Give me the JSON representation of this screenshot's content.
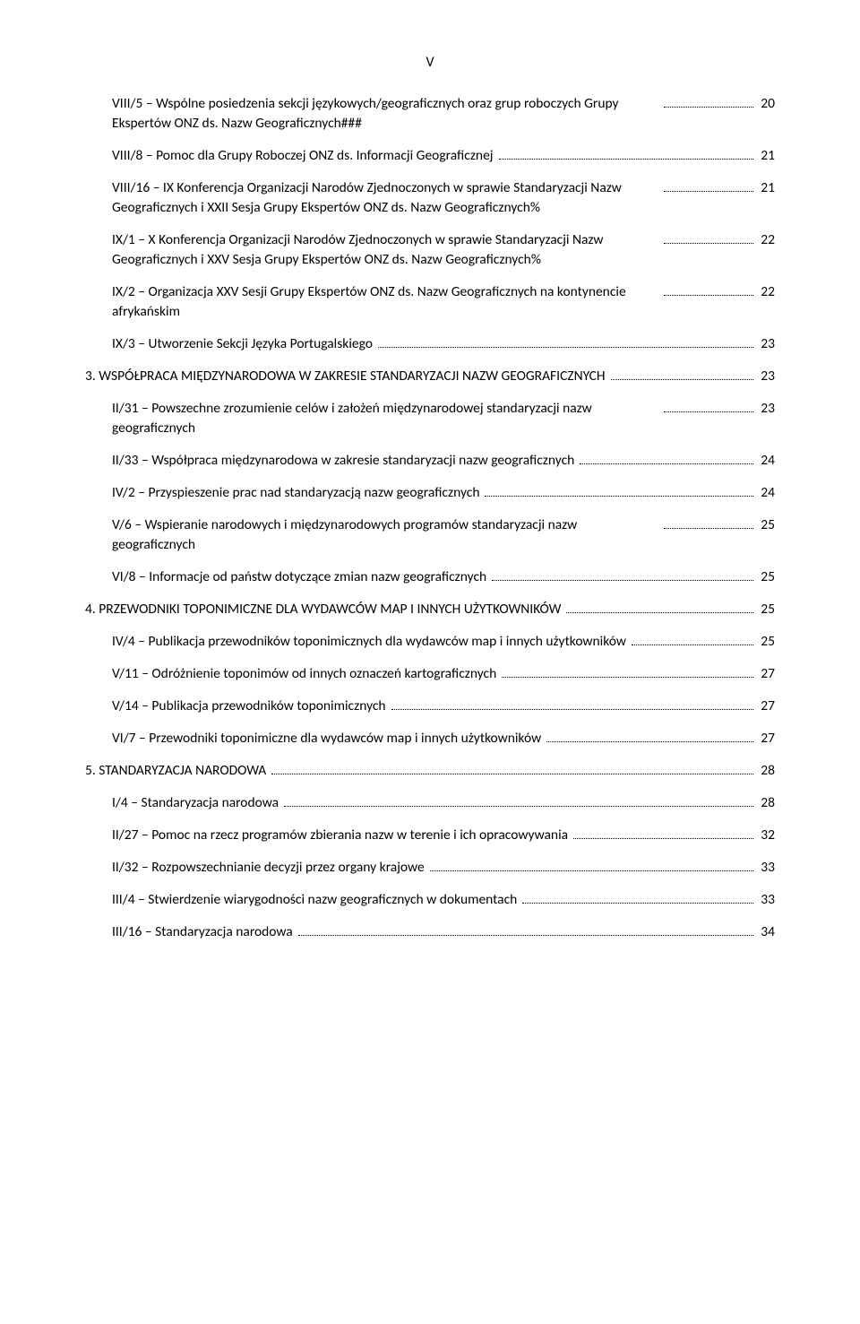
{
  "page_number_label": "V",
  "entries": [
    {
      "level": 1,
      "text": "VIII/5 – Wspólne posiedzenia sekcji językowych/geograficznych oraz grup roboczych Grupy Ekspertów ONZ ds. Nazw Geograficznych###",
      "page": "20",
      "multi": true
    },
    {
      "level": 1,
      "text": "VIII/8 – Pomoc dla Grupy Roboczej ONZ ds. Informacji Geograficznej",
      "page": "21"
    },
    {
      "level": 1,
      "text": "VIII/16 – IX Konferencja Organizacji Narodów Zjednoczonych w sprawie Standaryzacji Nazw Geograficznych i XXII Sesja Grupy Ekspertów ONZ ds. Nazw Geograficznych%",
      "page": "21",
      "multi": true
    },
    {
      "level": 1,
      "text": "IX/1 – X Konferencja Organizacji Narodów Zjednoczonych w sprawie Standaryzacji Nazw Geograficznych i XXV Sesja Grupy Ekspertów ONZ ds. Nazw Geograficznych%",
      "page": "22",
      "multi": true
    },
    {
      "level": 1,
      "text": "IX/2 – Organizacja XXV Sesji Grupy Ekspertów ONZ ds. Nazw Geograficznych na kontynencie afrykańskim",
      "page": "22",
      "multi": true
    },
    {
      "level": 1,
      "text": "IX/3 – Utworzenie Sekcji Języka Portugalskiego",
      "page": "23"
    },
    {
      "level": 0,
      "text": "3. WSPÓŁPRACA MIĘDZYNARODOWA W ZAKRESIE STANDARYZACJI NAZW GEOGRAFICZNYCH",
      "page": "23"
    },
    {
      "level": 1,
      "text": "II/31 – Powszechne zrozumienie celów i założeń międzynarodowej standaryzacji nazw geograficznych",
      "page": "23",
      "multi": true
    },
    {
      "level": 1,
      "text": "II/33 – Współpraca międzynarodowa w zakresie standaryzacji nazw geograficznych",
      "page": "24"
    },
    {
      "level": 1,
      "text": "IV/2 – Przyspieszenie prac nad standaryzacją nazw geograficznych",
      "page": "24"
    },
    {
      "level": 1,
      "text": "V/6 – Wspieranie narodowych i międzynarodowych programów standaryzacji nazw geograficznych",
      "page": "25",
      "multi": true
    },
    {
      "level": 1,
      "text": "VI/8 – Informacje od państw dotyczące zmian nazw geograficznych",
      "page": "25"
    },
    {
      "level": 0,
      "text": "4. PRZEWODNIKI TOPONIMICZNE DLA WYDAWCÓW MAP I INNYCH UŻYTKOWNIKÓW",
      "page": "25"
    },
    {
      "level": 1,
      "text": "IV/4 – Publikacja przewodników toponimicznych dla wydawców map i innych użytkowników",
      "page": "25"
    },
    {
      "level": 1,
      "text": "V/11 – Odróżnienie toponimów od innych oznaczeń kartograficznych",
      "page": "27"
    },
    {
      "level": 1,
      "text": "V/14 – Publikacja przewodników toponimicznych",
      "page": "27"
    },
    {
      "level": 1,
      "text": "VI/7 – Przewodniki toponimiczne dla wydawców map i innych użytkowników",
      "page": "27"
    },
    {
      "level": 0,
      "text": "5. STANDARYZACJA NARODOWA",
      "page": "28"
    },
    {
      "level": 1,
      "text": "I/4 – Standaryzacja narodowa",
      "page": "28"
    },
    {
      "level": 1,
      "text": "II/27 – Pomoc na rzecz programów zbierania nazw w terenie i ich opracowywania",
      "page": "32"
    },
    {
      "level": 1,
      "text": "II/32 – Rozpowszechnianie decyzji przez organy krajowe",
      "page": "33"
    },
    {
      "level": 1,
      "text": "III/4 – Stwierdzenie wiarygodności nazw geograficznych w dokumentach",
      "page": "33"
    },
    {
      "level": 1,
      "text": "III/16 – Standaryzacja narodowa",
      "page": "34"
    }
  ]
}
